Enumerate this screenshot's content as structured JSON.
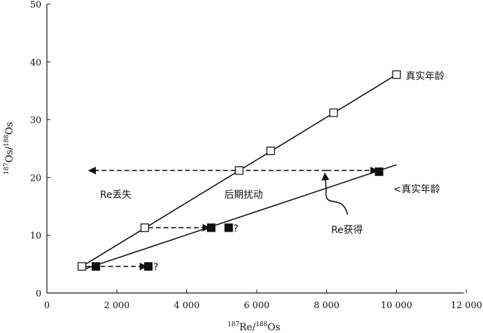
{
  "chart_data": {
    "type": "scatter",
    "xlabel": {
      "sup1": "187",
      "main1": "Re/",
      "sup2": "188",
      "main2": "Os"
    },
    "ylabel": {
      "sup1": "187",
      "main1": "Os/",
      "sup2": "188",
      "main2": "Os"
    },
    "xlim": [
      0,
      12000
    ],
    "ylim": [
      0,
      50
    ],
    "x_ticks": [
      0,
      2000,
      4000,
      6000,
      8000,
      10000,
      12000
    ],
    "x_tick_labels": [
      "0",
      "2 000",
      "4 000",
      "6 000",
      "8 000",
      "10 000",
      "12 000"
    ],
    "y_ticks": [
      0,
      10,
      20,
      30,
      40,
      50
    ],
    "y_tick_labels": [
      "0",
      "10",
      "20",
      "30",
      "40",
      "50"
    ],
    "grid": false,
    "series": [
      {
        "name": "真实年龄",
        "marker": "open-square",
        "x": [
          1000,
          2800,
          5500,
          6400,
          8200,
          10000
        ],
        "y": [
          4.6,
          11.3,
          21.2,
          24.6,
          31.2,
          37.8
        ]
      },
      {
        "name": "<真实年龄",
        "marker": "filled-square",
        "x": [
          1400,
          4700,
          9500
        ],
        "y": [
          4.6,
          11.3,
          21.0
        ]
      },
      {
        "name": "?",
        "marker": "filled-square",
        "x": [
          2900,
          5200
        ],
        "y": [
          4.6,
          11.3
        ]
      }
    ],
    "lines": [
      {
        "x": [
          1000,
          10000
        ],
        "y": [
          4.6,
          37.8
        ]
      },
      {
        "x": [
          1000,
          10000
        ],
        "y": [
          4.0,
          22.2
        ]
      }
    ],
    "arrows": [
      {
        "from": [
          1100,
          4.6
        ],
        "to": [
          2850,
          4.6
        ]
      },
      {
        "from": [
          2900,
          11.3
        ],
        "to": [
          4650,
          11.3
        ]
      },
      {
        "from": [
          8000,
          21.2
        ],
        "to": [
          1200,
          21.2
        ]
      },
      {
        "from": [
          8000,
          21.2
        ],
        "to": [
          9450,
          21.2
        ]
      }
    ],
    "curved_arrow": {
      "from": [
        8600,
        13.6
      ],
      "to": [
        7950,
        21.2
      ]
    },
    "annotations": {
      "true_age": "真实年龄",
      "less_true_age": "<真实年龄",
      "re_loss": "Re丢失",
      "disturbance": "后期扰动",
      "re_gain": "Re获得",
      "q1": "?",
      "q2": "?"
    },
    "colors": {
      "ink": "#111111"
    }
  }
}
